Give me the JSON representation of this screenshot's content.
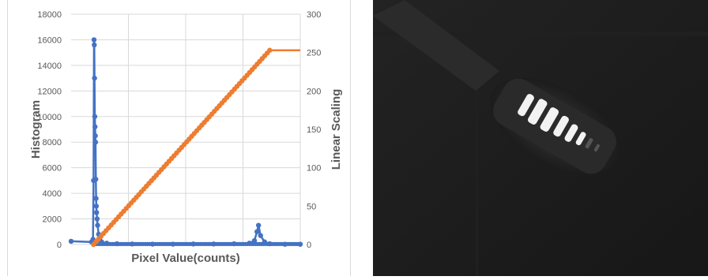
{
  "chart_data": {
    "type": "scatter",
    "xlabel": "Pixel Value(counts)",
    "ylabel": "Histogram",
    "y2label": "Linear Scaling",
    "x_axis_hidden_ticks": true,
    "ylim": [
      0,
      18000
    ],
    "y2lim": [
      0,
      300
    ],
    "y_ticks": [
      0,
      2000,
      4000,
      6000,
      8000,
      10000,
      12000,
      14000,
      16000,
      18000
    ],
    "y2_ticks": [
      0,
      50,
      100,
      150,
      200,
      250,
      300
    ],
    "xlim": [
      0,
      4500
    ],
    "grid": true,
    "legend": "none",
    "series": [
      {
        "axis": "left",
        "color": "#4472c4",
        "mode": "line+markers",
        "points": [
          [
            0,
            250
          ],
          [
            400,
            200
          ],
          [
            430,
            400
          ],
          [
            440,
            5000
          ],
          [
            450,
            16000
          ],
          [
            455,
            15600
          ],
          [
            460,
            13000
          ],
          [
            465,
            10000
          ],
          [
            470,
            9200
          ],
          [
            475,
            8500
          ],
          [
            480,
            8000
          ],
          [
            485,
            5100
          ],
          [
            490,
            3600
          ],
          [
            495,
            3000
          ],
          [
            500,
            2500
          ],
          [
            510,
            2000
          ],
          [
            520,
            1500
          ],
          [
            540,
            800
          ],
          [
            560,
            400
          ],
          [
            600,
            200
          ],
          [
            700,
            100
          ],
          [
            900,
            60
          ],
          [
            1200,
            40
          ],
          [
            1600,
            30
          ],
          [
            2000,
            30
          ],
          [
            2400,
            40
          ],
          [
            2800,
            40
          ],
          [
            3200,
            60
          ],
          [
            3500,
            100
          ],
          [
            3600,
            300
          ],
          [
            3650,
            1000
          ],
          [
            3680,
            1500
          ],
          [
            3720,
            700
          ],
          [
            3800,
            200
          ],
          [
            3900,
            60
          ],
          [
            4200,
            20
          ],
          [
            4500,
            20
          ]
        ]
      },
      {
        "axis": "right",
        "color": "#ed7d31",
        "mode": "line+markers",
        "points": [
          [
            440,
            0
          ],
          [
            3900,
            253
          ],
          [
            4500,
            253
          ]
        ]
      }
    ]
  },
  "image_panel": {
    "description_icon": "dark-camera-image",
    "background": "#1c1c1c"
  }
}
